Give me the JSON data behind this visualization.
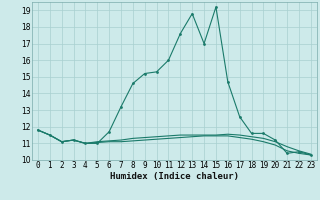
{
  "xlabel": "Humidex (Indice chaleur)",
  "x": [
    0,
    1,
    2,
    3,
    4,
    5,
    6,
    7,
    8,
    9,
    10,
    11,
    12,
    13,
    14,
    15,
    16,
    17,
    18,
    19,
    20,
    21,
    22,
    23
  ],
  "line1": [
    11.8,
    11.5,
    11.1,
    11.2,
    11.0,
    11.0,
    11.7,
    13.2,
    14.6,
    15.2,
    15.3,
    16.0,
    17.6,
    18.8,
    17.0,
    19.2,
    14.7,
    12.6,
    11.6,
    11.6,
    11.2,
    10.4,
    10.5,
    10.3
  ],
  "line2": [
    11.8,
    11.5,
    11.1,
    11.2,
    11.0,
    11.1,
    11.15,
    11.2,
    11.3,
    11.35,
    11.4,
    11.45,
    11.5,
    11.5,
    11.5,
    11.5,
    11.55,
    11.5,
    11.4,
    11.3,
    11.1,
    10.8,
    10.55,
    10.35
  ],
  "line3": [
    11.8,
    11.5,
    11.1,
    11.2,
    11.0,
    11.05,
    11.1,
    11.1,
    11.15,
    11.2,
    11.25,
    11.3,
    11.35,
    11.4,
    11.45,
    11.45,
    11.45,
    11.35,
    11.25,
    11.1,
    10.9,
    10.55,
    10.4,
    10.3
  ],
  "line_color": "#1a7a6a",
  "bg_color": "#cdeaea",
  "grid_color": "#a8d0d0",
  "ylim": [
    10,
    19.5
  ],
  "yticks": [
    10,
    11,
    12,
    13,
    14,
    15,
    16,
    17,
    18,
    19
  ],
  "xticks": [
    0,
    1,
    2,
    3,
    4,
    5,
    6,
    7,
    8,
    9,
    10,
    11,
    12,
    13,
    14,
    15,
    16,
    17,
    18,
    19,
    20,
    21,
    22,
    23
  ],
  "tick_fontsize": 5.5,
  "xlabel_fontsize": 6.5,
  "lw": 0.8,
  "ms": 2.0
}
